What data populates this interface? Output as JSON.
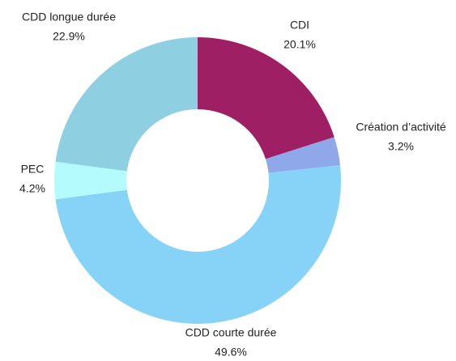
{
  "chart_data": {
    "type": "donut",
    "categories": [
      "CDI",
      "Création d’activité",
      "CDD courte durée",
      "PEC",
      "CDD longue durée"
    ],
    "values": [
      20.1,
      3.2,
      49.6,
      4.2,
      22.9
    ],
    "value_labels": [
      "20.1%",
      "3.2%",
      "49.6%",
      "4.2%",
      "22.9%"
    ],
    "colors": [
      "#9e1f63",
      "#8fa8ea",
      "#87d3f8",
      "#b3fbfd",
      "#8ed0e2"
    ]
  }
}
